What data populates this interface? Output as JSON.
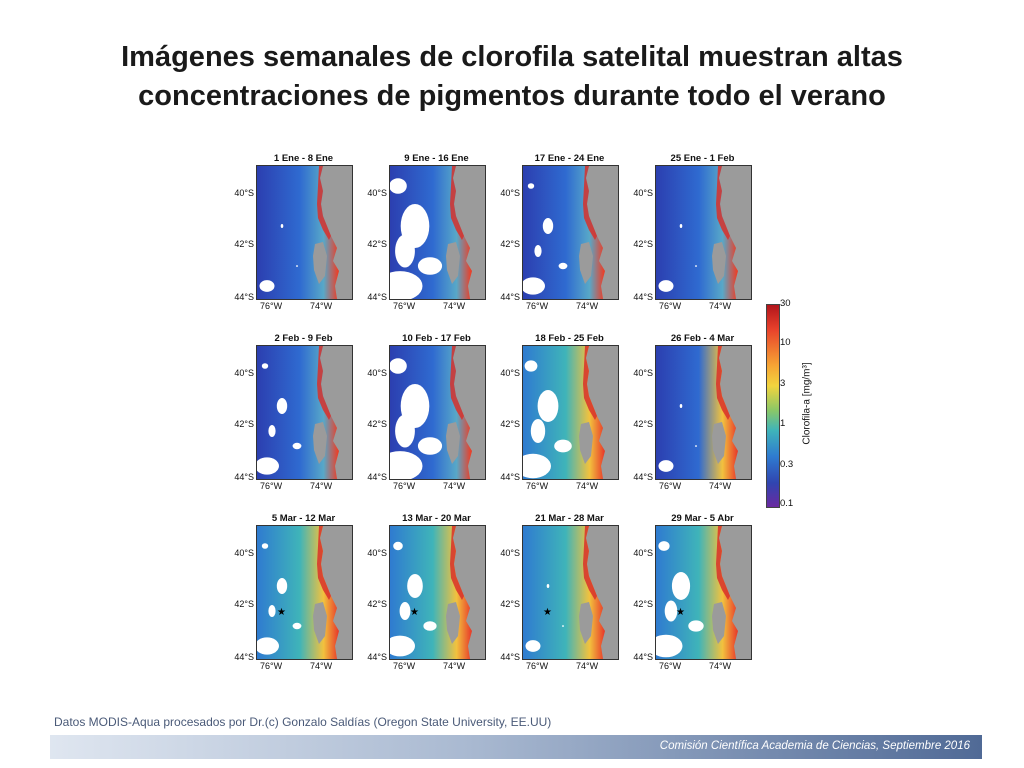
{
  "slide": {
    "title_line1": "Imágenes semanales de clorofila satelital muestran altas",
    "title_line2": "concentraciones de pigmentos durante todo el verano",
    "credit": "Datos MODIS-Aqua procesados por Dr.(c) Gonzalo Saldías (Oregon State University, EE.UU)",
    "footer": "Comisión Científica Academia de Ciencias, Septiembre 2016"
  },
  "axes": {
    "lat_labels": [
      "40°S",
      "42°S",
      "44°S"
    ],
    "lon_labels": [
      "76°W",
      "74°W"
    ]
  },
  "panels": [
    {
      "title": "1 Ene - 8 Ene",
      "cloud": 0.05,
      "intensity": 0.45,
      "star": false
    },
    {
      "title": "9 Ene - 16 Ene",
      "cloud": 0.55,
      "intensity": 0.35,
      "star": false
    },
    {
      "title": "17 Ene - 24 Ene",
      "cloud": 0.2,
      "intensity": 0.25,
      "star": false
    },
    {
      "title": "25 Ene - 1 Feb",
      "cloud": 0.05,
      "intensity": 0.35,
      "star": false
    },
    {
      "title": "2 Feb - 9 Feb",
      "cloud": 0.2,
      "intensity": 0.3,
      "star": false
    },
    {
      "title": "10 Feb - 17 Feb",
      "cloud": 0.55,
      "intensity": 0.4,
      "star": false
    },
    {
      "title": "18 Feb - 25 Feb",
      "cloud": 0.4,
      "intensity": 0.6,
      "star": false
    },
    {
      "title": "26 Feb - 4 Mar",
      "cloud": 0.05,
      "intensity": 0.55,
      "star": false
    },
    {
      "title": "5 Mar - 12 Mar",
      "cloud": 0.2,
      "intensity": 0.6,
      "star": true
    },
    {
      "title": "13 Mar - 20 Mar",
      "cloud": 0.3,
      "intensity": 0.65,
      "star": true
    },
    {
      "title": "21 Mar - 28 Mar",
      "cloud": 0.05,
      "intensity": 0.7,
      "star": true
    },
    {
      "title": "29 Mar - 5 Abr",
      "cloud": 0.35,
      "intensity": 0.65,
      "star": true
    }
  ],
  "colorbar": {
    "label": "Clorofila-a [mg/m³]",
    "ticks": [
      "30",
      "10",
      "3",
      "1",
      "0.3",
      "0.1"
    ]
  },
  "colors": {
    "low": "#3045b0",
    "mid": "#3fb4b9",
    "high": "#b2151b",
    "land": "#9b9b9b",
    "cloud": "#ffffff"
  }
}
